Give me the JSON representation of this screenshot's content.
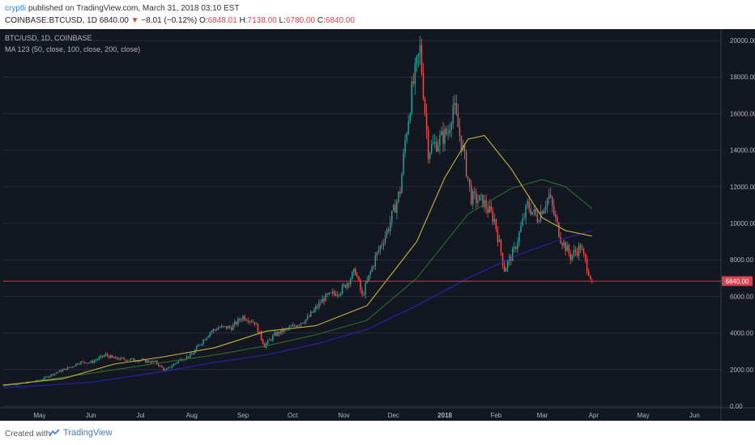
{
  "header": {
    "author": "cryptli",
    "published_text": "published on TradingView.com, March 31, 2018 03:10 EST",
    "symbol_line": "COINBASE:BTCUSD, 1D",
    "last": "6840.00",
    "change": "−8.01 (−0.12%)",
    "o_label": "O:",
    "o_val": "6848.01",
    "h_label": "H:",
    "h_val": "7138.00",
    "l_label": "L:",
    "l_val": "6780.00",
    "c_label": "C:",
    "c_val": "6840.00"
  },
  "legend": {
    "line1": "BTC/USD, 1D, COINBASE",
    "line2": "MA 123 (50, close, 100, close, 200, close)"
  },
  "footer": {
    "created_with": "Created with",
    "brand": "TradingView"
  },
  "colors": {
    "background": "#131722",
    "up": "#26a69a",
    "down": "#ef5350",
    "ma50": "#c8b436",
    "ma100": "#2d6b2d",
    "ma200": "#2424b8",
    "price_line": "#d8434d",
    "grid": "#2a2e39",
    "axis_text": "#b2b5be"
  },
  "chart_data": {
    "type": "candlestick",
    "ylim": [
      0,
      20000
    ],
    "y_ticks": [
      "0.00",
      "2000.00",
      "4000.00",
      "6000.00",
      "8000.00",
      "10000.00",
      "12000.00",
      "14000.00",
      "16000.00",
      "18000.00",
      "20000.00"
    ],
    "y_tick_values": [
      0,
      2000,
      4000,
      6000,
      8000,
      10000,
      12000,
      14000,
      16000,
      18000,
      20000
    ],
    "x_labels": [
      "May",
      "Jun",
      "Jul",
      "Aug",
      "Sep",
      "Oct",
      "Nov",
      "Dec",
      "2018",
      "Feb",
      "Mar",
      "Apr",
      "May",
      "Jun"
    ],
    "x_label_dates": [
      "2017-05-01",
      "2017-06-01",
      "2017-07-01",
      "2017-08-01",
      "2017-09-01",
      "2017-10-01",
      "2017-11-01",
      "2017-12-01",
      "2018-01-01",
      "2018-02-01",
      "2018-03-01",
      "2018-04-01",
      "2018-05-01",
      "2018-06-01"
    ],
    "x_range": [
      "2017-04-09",
      "2018-06-17"
    ],
    "last_price": 6840.0,
    "last_price_label": "6840.00",
    "close_path": {
      "dates": [
        "2017-04-09",
        "2017-04-20",
        "2017-05-01",
        "2017-05-10",
        "2017-05-20",
        "2017-05-25",
        "2017-06-01",
        "2017-06-10",
        "2017-06-15",
        "2017-06-25",
        "2017-07-01",
        "2017-07-10",
        "2017-07-16",
        "2017-07-25",
        "2017-08-01",
        "2017-08-05",
        "2017-08-12",
        "2017-08-17",
        "2017-08-25",
        "2017-09-01",
        "2017-09-08",
        "2017-09-14",
        "2017-09-20",
        "2017-09-30",
        "2017-10-10",
        "2017-10-20",
        "2017-10-31",
        "2017-11-08",
        "2017-11-12",
        "2017-11-20",
        "2017-11-28",
        "2017-12-05",
        "2017-12-08",
        "2017-12-12",
        "2017-12-17",
        "2017-12-22",
        "2017-12-28",
        "2018-01-03",
        "2018-01-06",
        "2018-01-12",
        "2018-01-17",
        "2018-01-24",
        "2018-01-31",
        "2018-02-06",
        "2018-02-12",
        "2018-02-20",
        "2018-02-26",
        "2018-03-05",
        "2018-03-12",
        "2018-03-18",
        "2018-03-24",
        "2018-03-31"
      ],
      "values": [
        1180,
        1230,
        1420,
        1800,
        2150,
        2400,
        2400,
        2800,
        2600,
        2550,
        2500,
        2400,
        1950,
        2550,
        2800,
        3300,
        4050,
        4300,
        4300,
        4900,
        4600,
        3300,
        3900,
        4300,
        4800,
        5900,
        6400,
        7400,
        6000,
        8100,
        9800,
        11800,
        14500,
        17200,
        19500,
        14000,
        14500,
        15000,
        16500,
        14000,
        11400,
        11200,
        10200,
        7500,
        8500,
        11000,
        10300,
        11500,
        9200,
        8200,
        8700,
        6840
      ]
    },
    "ma50_path": {
      "dates": [
        "2017-04-09",
        "2017-05-15",
        "2017-06-15",
        "2017-07-15",
        "2017-08-15",
        "2017-09-15",
        "2017-10-15",
        "2017-11-15",
        "2017-12-15",
        "2018-01-01",
        "2018-01-15",
        "2018-01-25",
        "2018-02-10",
        "2018-03-01",
        "2018-03-15",
        "2018-03-31"
      ],
      "values": [
        1150,
        1500,
        2300,
        2700,
        3200,
        4100,
        4400,
        5500,
        9000,
        12500,
        14600,
        14800,
        13000,
        10300,
        9600,
        9300
      ]
    },
    "ma100_path": {
      "dates": [
        "2017-04-09",
        "2017-06-01",
        "2017-07-15",
        "2017-08-15",
        "2017-09-15",
        "2017-10-15",
        "2017-11-15",
        "2017-12-15",
        "2018-01-15",
        "2018-02-10",
        "2018-03-01",
        "2018-03-15",
        "2018-03-31"
      ],
      "values": [
        1100,
        1800,
        2400,
        2800,
        3300,
        3900,
        4700,
        7000,
        10500,
        11900,
        12400,
        12000,
        10800
      ]
    },
    "ma200_path": {
      "dates": [
        "2017-04-09",
        "2017-06-01",
        "2017-07-15",
        "2017-08-15",
        "2017-09-15",
        "2017-10-15",
        "2017-11-15",
        "2017-12-15",
        "2018-01-15",
        "2018-02-15",
        "2018-03-15",
        "2018-03-31"
      ],
      "values": [
        1000,
        1300,
        1900,
        2400,
        2800,
        3400,
        4200,
        5500,
        7000,
        8300,
        9200,
        9600
      ]
    }
  }
}
